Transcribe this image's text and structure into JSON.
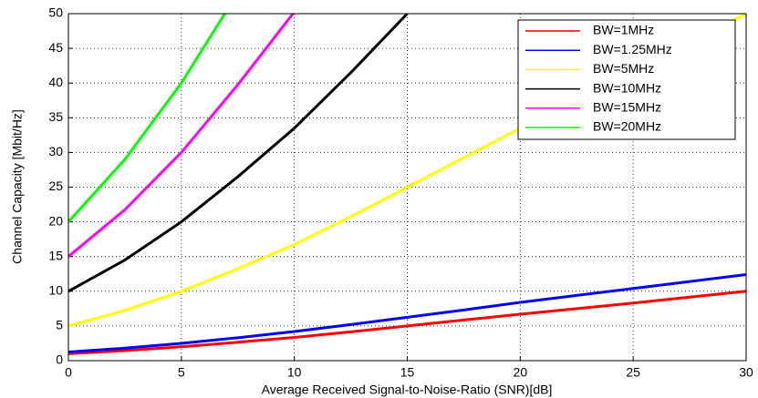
{
  "chart_data": {
    "type": "line",
    "x_label": "Average Received Signal-to-Noise-Ratio (SNR)[dB]",
    "y_label": "Channel Capacity [Mbit/Hz]",
    "x": [
      0,
      2.5,
      5,
      7.5,
      10,
      12.5,
      15,
      17.5,
      20,
      22.5,
      25,
      27.5,
      30
    ],
    "series": [
      {
        "name": "BW=1MHz",
        "color": "#ff0000",
        "values": [
          1,
          1.45,
          2,
          2.65,
          3.35,
          4.15,
          5,
          5.85,
          6.7,
          7.5,
          8.3,
          9.15,
          10
        ]
      },
      {
        "name": "BW=1.25MHz",
        "color": "#0000ff",
        "values": [
          1.25,
          1.8,
          2.5,
          3.3,
          4.2,
          5.2,
          6.25,
          7.3,
          8.4,
          9.4,
          10.4,
          11.4,
          12.4
        ]
      },
      {
        "name": "BW=5MHz",
        "color": "#ffff00",
        "values": [
          5,
          7.25,
          10,
          13.25,
          16.75,
          20.75,
          25,
          29.25,
          33.5,
          37.5,
          41.5,
          45.75,
          50
        ]
      },
      {
        "name": "BW=10MHz",
        "color": "#000000",
        "values": [
          10,
          14.5,
          20,
          26.5,
          33.5,
          41.5,
          50,
          null,
          null,
          null,
          null,
          null,
          null
        ]
      },
      {
        "name": "BW=15MHz",
        "color": "#ff00ff",
        "values": [
          15,
          21.75,
          30,
          39.75,
          50.25,
          null,
          null,
          null,
          null,
          null,
          null,
          null,
          null
        ]
      },
      {
        "name": "BW=20MHz",
        "color": "#00ff00",
        "values": [
          20,
          29,
          40,
          53,
          null,
          null,
          null,
          null,
          null,
          null,
          null,
          null,
          null
        ]
      }
    ],
    "xlim": [
      0,
      30
    ],
    "xticks": [
      0,
      5,
      10,
      15,
      20,
      25,
      30
    ],
    "ylim": [
      0,
      50
    ],
    "yticks": [
      0,
      5,
      10,
      15,
      20,
      25,
      30,
      35,
      40,
      45,
      50
    ],
    "grid": true,
    "legend": "upper right"
  }
}
